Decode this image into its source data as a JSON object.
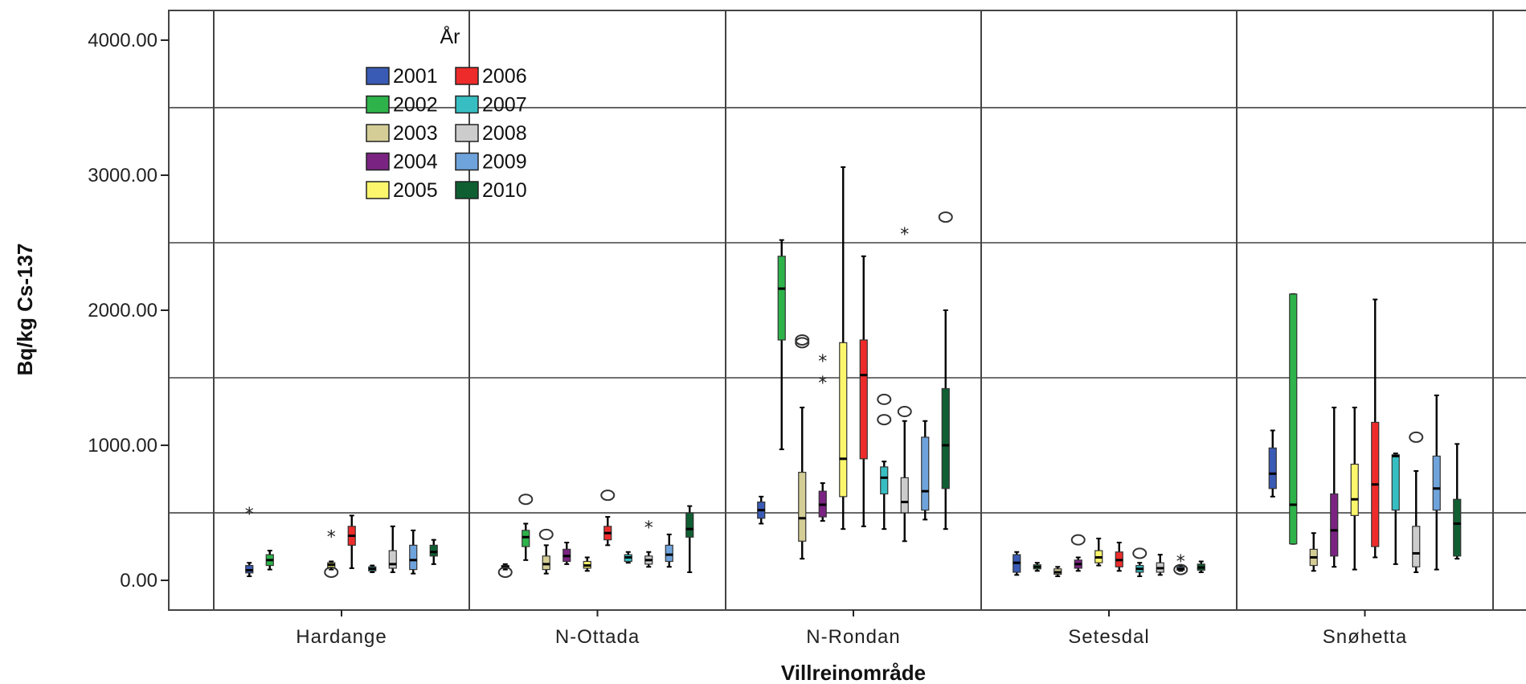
{
  "chart_data": {
    "type": "boxplot",
    "title": "",
    "xlabel": "Villreinområde",
    "ylabel": "Bq/kg Cs-137",
    "ylim": [
      -220,
      4220
    ],
    "yticks": [
      0,
      1000,
      2000,
      3000,
      4000
    ],
    "ytick_labels": [
      "0.00",
      "1000.00",
      "2000.00",
      "3000.00",
      "4000.00"
    ],
    "grid": true,
    "categories": [
      "Hardange",
      "N-Ottada",
      "N-Rondan",
      "Setesdal",
      "Snøhetta"
    ],
    "legend": {
      "title": "År",
      "position": "top-left",
      "entries": [
        {
          "label": "2001",
          "color": "#3a5bb5"
        },
        {
          "label": "2006",
          "color": "#ee2b2b"
        },
        {
          "label": "2002",
          "color": "#2db34a"
        },
        {
          "label": "2007",
          "color": "#37bec2"
        },
        {
          "label": "2003",
          "color": "#d4ce96"
        },
        {
          "label": "2008",
          "color": "#cccccc"
        },
        {
          "label": "2004",
          "color": "#7b2382"
        },
        {
          "label": "2009",
          "color": "#6fa3dc"
        },
        {
          "label": "2005",
          "color": "#fcf66d"
        },
        {
          "label": "2010",
          "color": "#0f5f32"
        }
      ]
    },
    "series": [
      {
        "name": "2001",
        "color": "#3a5bb5"
      },
      {
        "name": "2002",
        "color": "#2db34a"
      },
      {
        "name": "2003",
        "color": "#d4ce96"
      },
      {
        "name": "2004",
        "color": "#7b2382"
      },
      {
        "name": "2005",
        "color": "#fcf66d"
      },
      {
        "name": "2006",
        "color": "#ee2b2b"
      },
      {
        "name": "2007",
        "color": "#37bec2"
      },
      {
        "name": "2008",
        "color": "#cccccc"
      },
      {
        "name": "2009",
        "color": "#6fa3dc"
      },
      {
        "name": "2010",
        "color": "#0f5f32"
      }
    ],
    "boxes": [
      {
        "category": "Hardange",
        "year": "2001",
        "min": 30,
        "q1": 55,
        "median": 75,
        "q3": 110,
        "max": 130,
        "outliers": [],
        "extremes": [
          500
        ]
      },
      {
        "category": "Hardange",
        "year": "2002",
        "min": 80,
        "q1": 110,
        "median": 150,
        "q3": 190,
        "max": 220,
        "outliers": [],
        "extremes": []
      },
      {
        "category": "Hardange",
        "year": "2005",
        "min": 80,
        "q1": 95,
        "median": 115,
        "q3": 130,
        "max": 140,
        "outliers": [
          60
        ],
        "extremes": [
          330
        ]
      },
      {
        "category": "Hardange",
        "year": "2006",
        "min": 90,
        "q1": 260,
        "median": 330,
        "q3": 400,
        "max": 480,
        "outliers": [],
        "extremes": []
      },
      {
        "category": "Hardange",
        "year": "2007",
        "min": 60,
        "q1": 70,
        "median": 85,
        "q3": 100,
        "max": 110,
        "outliers": [],
        "extremes": []
      },
      {
        "category": "Hardange",
        "year": "2008",
        "min": 60,
        "q1": 90,
        "median": 120,
        "q3": 220,
        "max": 400,
        "outliers": [],
        "extremes": []
      },
      {
        "category": "Hardange",
        "year": "2009",
        "min": 50,
        "q1": 80,
        "median": 150,
        "q3": 260,
        "max": 370,
        "outliers": [],
        "extremes": []
      },
      {
        "category": "Hardange",
        "year": "2010",
        "min": 120,
        "q1": 180,
        "median": 210,
        "q3": 260,
        "max": 300,
        "outliers": [],
        "extremes": []
      },
      {
        "category": "N-Ottada",
        "year": "2001",
        "min": 80,
        "q1": 90,
        "median": 100,
        "q3": 110,
        "max": 120,
        "outliers": [
          60
        ],
        "extremes": []
      },
      {
        "category": "N-Ottada",
        "year": "2002",
        "min": 150,
        "q1": 250,
        "median": 320,
        "q3": 370,
        "max": 420,
        "outliers": [
          600
        ],
        "extremes": []
      },
      {
        "category": "N-Ottada",
        "year": "2003",
        "min": 50,
        "q1": 80,
        "median": 120,
        "q3": 180,
        "max": 260,
        "outliers": [
          340
        ],
        "extremes": []
      },
      {
        "category": "N-Ottada",
        "year": "2004",
        "min": 120,
        "q1": 140,
        "median": 180,
        "q3": 230,
        "max": 280,
        "outliers": [],
        "extremes": []
      },
      {
        "category": "N-Ottada",
        "year": "2005",
        "min": 70,
        "q1": 90,
        "median": 110,
        "q3": 140,
        "max": 170,
        "outliers": [],
        "extremes": []
      },
      {
        "category": "N-Ottada",
        "year": "2006",
        "min": 260,
        "q1": 300,
        "median": 350,
        "q3": 400,
        "max": 470,
        "outliers": [
          630
        ],
        "extremes": []
      },
      {
        "category": "N-Ottada",
        "year": "2007",
        "min": 130,
        "q1": 140,
        "median": 170,
        "q3": 190,
        "max": 210,
        "outliers": [],
        "extremes": []
      },
      {
        "category": "N-Ottada",
        "year": "2008",
        "min": 100,
        "q1": 120,
        "median": 150,
        "q3": 180,
        "max": 210,
        "outliers": [],
        "extremes": [
          400
        ]
      },
      {
        "category": "N-Ottada",
        "year": "2009",
        "min": 100,
        "q1": 140,
        "median": 190,
        "q3": 260,
        "max": 340,
        "outliers": [],
        "extremes": []
      },
      {
        "category": "N-Ottada",
        "year": "2010",
        "min": 60,
        "q1": 320,
        "median": 380,
        "q3": 500,
        "max": 550,
        "outliers": [],
        "extremes": []
      },
      {
        "category": "N-Rondan",
        "year": "2001",
        "min": 420,
        "q1": 460,
        "median": 520,
        "q3": 580,
        "max": 620,
        "outliers": [],
        "extremes": []
      },
      {
        "category": "N-Rondan",
        "year": "2002",
        "min": 970,
        "q1": 1780,
        "median": 2160,
        "q3": 2400,
        "max": 2520,
        "outliers": [],
        "extremes": []
      },
      {
        "category": "N-Rondan",
        "year": "2003",
        "min": 160,
        "q1": 290,
        "median": 460,
        "q3": 800,
        "max": 1280,
        "outliers": [
          1760,
          1780
        ],
        "extremes": []
      },
      {
        "category": "N-Rondan",
        "year": "2004",
        "min": 440,
        "q1": 470,
        "median": 560,
        "q3": 660,
        "max": 720,
        "outliers": [],
        "extremes": [
          1630,
          1470
        ]
      },
      {
        "category": "N-Rondan",
        "year": "2005",
        "min": 380,
        "q1": 620,
        "median": 900,
        "q3": 1760,
        "max": 3060,
        "outliers": [],
        "extremes": []
      },
      {
        "category": "N-Rondan",
        "year": "2006",
        "min": 400,
        "q1": 900,
        "median": 1520,
        "q3": 1780,
        "max": 2400,
        "outliers": [],
        "extremes": []
      },
      {
        "category": "N-Rondan",
        "year": "2007",
        "min": 380,
        "q1": 640,
        "median": 760,
        "q3": 840,
        "max": 880,
        "outliers": [
          1340,
          1190
        ],
        "extremes": []
      },
      {
        "category": "N-Rondan",
        "year": "2008",
        "min": 290,
        "q1": 500,
        "median": 580,
        "q3": 760,
        "max": 1180,
        "outliers": [
          1250
        ],
        "extremes": [
          2570
        ]
      },
      {
        "category": "N-Rondan",
        "year": "2009",
        "min": 450,
        "q1": 520,
        "median": 660,
        "q3": 1060,
        "max": 1180,
        "outliers": [],
        "extremes": []
      },
      {
        "category": "N-Rondan",
        "year": "2010",
        "min": 380,
        "q1": 680,
        "median": 1000,
        "q3": 1420,
        "max": 2000,
        "outliers": [
          2690
        ],
        "extremes": []
      },
      {
        "category": "Setesdal",
        "year": "2001",
        "min": 40,
        "q1": 60,
        "median": 130,
        "q3": 190,
        "max": 210,
        "outliers": [],
        "extremes": []
      },
      {
        "category": "Setesdal",
        "year": "2002",
        "min": 70,
        "q1": 85,
        "median": 100,
        "q3": 115,
        "max": 130,
        "outliers": [],
        "extremes": []
      },
      {
        "category": "Setesdal",
        "year": "2003",
        "min": 30,
        "q1": 45,
        "median": 60,
        "q3": 85,
        "max": 100,
        "outliers": [],
        "extremes": []
      },
      {
        "category": "Setesdal",
        "year": "2004",
        "min": 70,
        "q1": 90,
        "median": 120,
        "q3": 150,
        "max": 170,
        "outliers": [
          300
        ],
        "extremes": []
      },
      {
        "category": "Setesdal",
        "year": "2005",
        "min": 110,
        "q1": 130,
        "median": 170,
        "q3": 220,
        "max": 310,
        "outliers": [],
        "extremes": []
      },
      {
        "category": "Setesdal",
        "year": "2006",
        "min": 70,
        "q1": 100,
        "median": 150,
        "q3": 210,
        "max": 280,
        "outliers": [],
        "extremes": []
      },
      {
        "category": "Setesdal",
        "year": "2007",
        "min": 30,
        "q1": 60,
        "median": 85,
        "q3": 110,
        "max": 130,
        "outliers": [
          200
        ],
        "extremes": []
      },
      {
        "category": "Setesdal",
        "year": "2008",
        "min": 40,
        "q1": 60,
        "median": 90,
        "q3": 130,
        "max": 190,
        "outliers": [],
        "extremes": []
      },
      {
        "category": "Setesdal",
        "year": "2009",
        "min": 70,
        "q1": 75,
        "median": 85,
        "q3": 100,
        "max": 110,
        "outliers": [
          80
        ],
        "extremes": [
          150
        ]
      },
      {
        "category": "Setesdal",
        "year": "2010",
        "min": 60,
        "q1": 75,
        "median": 95,
        "q3": 120,
        "max": 140,
        "outliers": [],
        "extremes": []
      },
      {
        "category": "Snøhetta",
        "year": "2001",
        "min": 620,
        "q1": 680,
        "median": 790,
        "q3": 980,
        "max": 1110,
        "outliers": [],
        "extremes": []
      },
      {
        "category": "Snøhetta",
        "year": "2002",
        "min": 270,
        "q1": 270,
        "median": 560,
        "q3": 2120,
        "max": 2120,
        "outliers": [],
        "extremes": []
      },
      {
        "category": "Snøhetta",
        "year": "2003",
        "min": 70,
        "q1": 110,
        "median": 170,
        "q3": 230,
        "max": 350,
        "outliers": [],
        "extremes": []
      },
      {
        "category": "Snøhetta",
        "year": "2004",
        "min": 100,
        "q1": 180,
        "median": 370,
        "q3": 640,
        "max": 1280,
        "outliers": [],
        "extremes": []
      },
      {
        "category": "Snøhetta",
        "year": "2005",
        "min": 80,
        "q1": 480,
        "median": 600,
        "q3": 860,
        "max": 1280,
        "outliers": [],
        "extremes": []
      },
      {
        "category": "Snøhetta",
        "year": "2006",
        "min": 170,
        "q1": 250,
        "median": 710,
        "q3": 1170,
        "max": 2080,
        "outliers": [],
        "extremes": []
      },
      {
        "category": "Snøhetta",
        "year": "2007",
        "min": 120,
        "q1": 520,
        "median": 920,
        "q3": 930,
        "max": 940,
        "outliers": [],
        "extremes": []
      },
      {
        "category": "Snøhetta",
        "year": "2008",
        "min": 60,
        "q1": 100,
        "median": 200,
        "q3": 400,
        "max": 810,
        "outliers": [
          1060
        ],
        "extremes": []
      },
      {
        "category": "Snøhetta",
        "year": "2009",
        "min": 80,
        "q1": 520,
        "median": 680,
        "q3": 920,
        "max": 1370,
        "outliers": [],
        "extremes": []
      },
      {
        "category": "Snøhetta",
        "year": "2010",
        "min": 160,
        "q1": 180,
        "median": 420,
        "q3": 600,
        "max": 1010,
        "outliers": [],
        "extremes": []
      }
    ]
  }
}
